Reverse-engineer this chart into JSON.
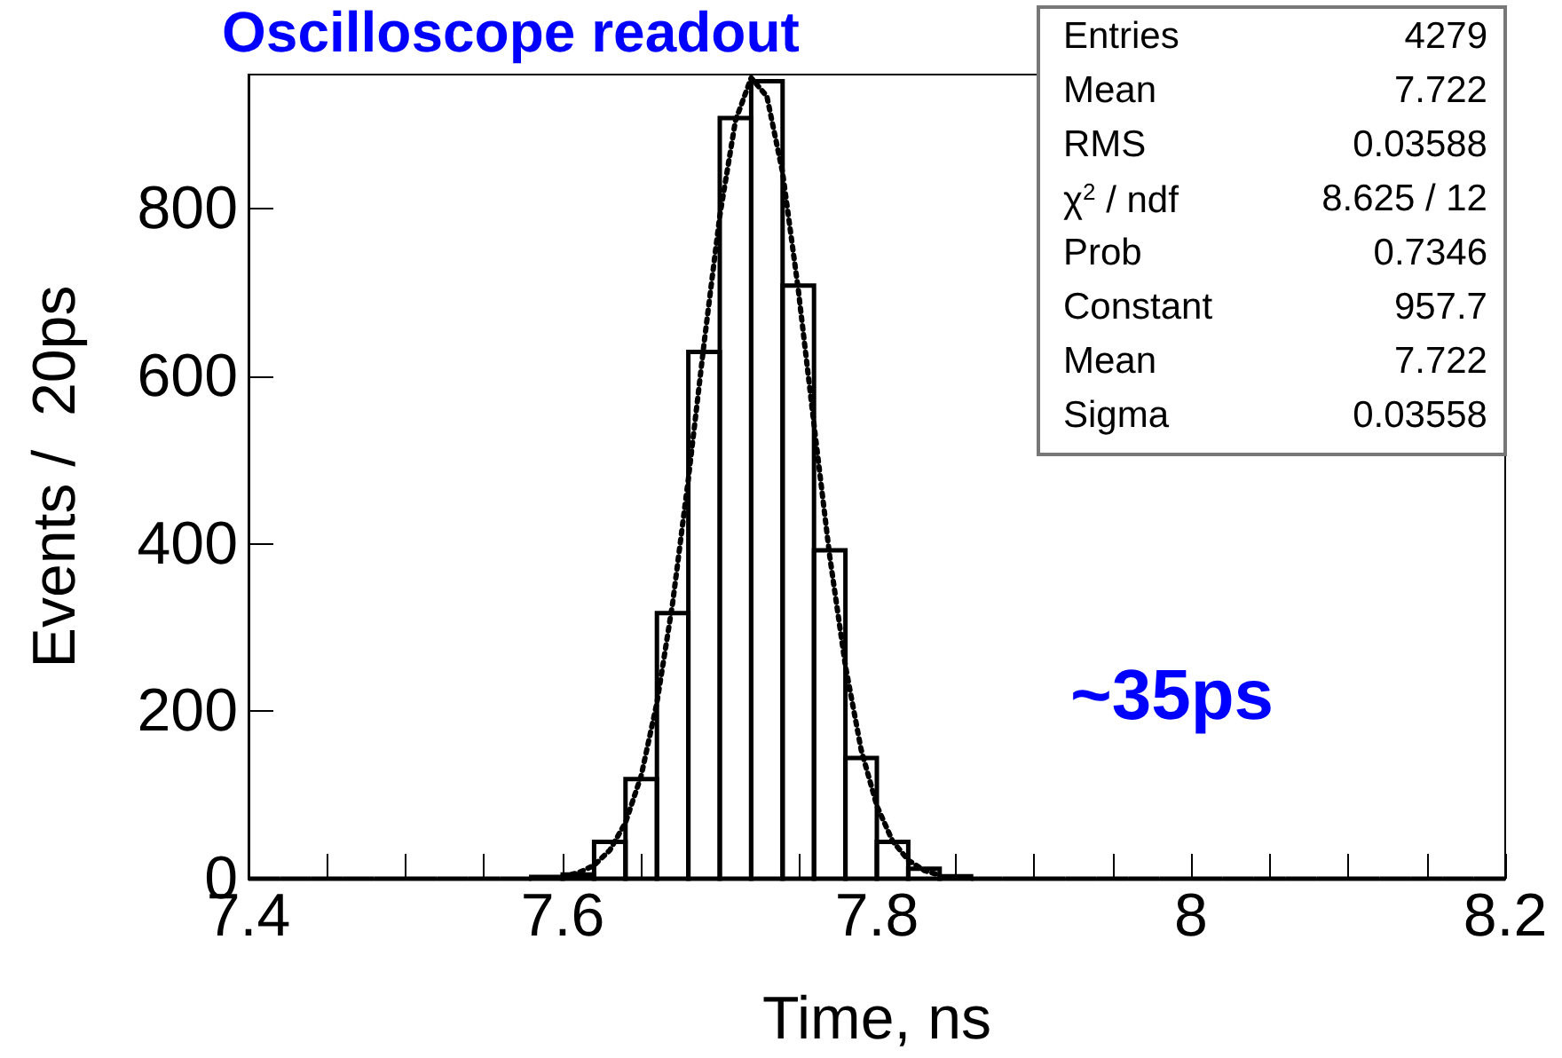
{
  "chart_data": {
    "type": "histogram",
    "title": "Oscilloscope readout",
    "xlabel": "Time, ns",
    "ylabel": "Events /  20ps",
    "xlim": [
      7.4,
      8.2
    ],
    "ylim": [
      0,
      960
    ],
    "xticks": [
      7.4,
      {
        "value": 7.45,
        "label": null
      },
      {
        "value": 7.5,
        "label": null
      },
      {
        "value": 7.55,
        "label": null
      },
      7.6,
      {
        "value": 7.65,
        "label": null
      },
      {
        "value": 7.7,
        "label": null
      },
      {
        "value": 7.75,
        "label": null
      },
      7.8,
      {
        "value": 7.85,
        "label": null
      },
      {
        "value": 7.9,
        "label": null
      },
      {
        "value": 7.95,
        "label": null
      },
      8,
      {
        "value": 8.05,
        "label": null
      },
      {
        "value": 8.1,
        "label": null
      },
      {
        "value": 8.15,
        "label": null
      },
      8.2
    ],
    "yticks": [
      0,
      200,
      400,
      600,
      800
    ],
    "grid": false,
    "series": [
      {
        "type": "histogram",
        "color": "#000000",
        "bins": [
          7.4,
          7.42,
          7.44,
          7.46,
          7.48,
          7.5,
          7.52,
          7.54,
          7.56,
          7.58,
          7.6,
          7.62,
          7.64,
          7.66,
          7.68,
          7.7,
          7.72,
          7.74,
          7.76,
          7.78,
          7.8,
          7.82,
          7.84,
          7.86,
          7.88,
          7.9,
          7.92,
          7.94,
          7.96,
          7.98,
          8,
          8.02,
          8.04,
          8.06,
          8.08,
          8.1,
          8.12,
          8.14,
          8.16,
          8.18,
          8.2
        ],
        "values": [
          0,
          0,
          0,
          0,
          0,
          0,
          0,
          0,
          0,
          2,
          5,
          44,
          119,
          317,
          629,
          908,
          952,
          708,
          392,
          144,
          44,
          12,
          3,
          0,
          0,
          0,
          0,
          0,
          0,
          0,
          0,
          0,
          0,
          0,
          0,
          0,
          0,
          0,
          0,
          0
        ]
      },
      {
        "type": "line",
        "color": "#000000",
        "line_style": "dotted",
        "marker": "none",
        "x": [
          7.6,
          7.61,
          7.62,
          7.63,
          7.64,
          7.65,
          7.66,
          7.67,
          7.68,
          7.69,
          7.7,
          7.71,
          7.72,
          7.73,
          7.74,
          7.75,
          7.76,
          7.77,
          7.78,
          7.79,
          7.8,
          7.81,
          7.82,
          7.83,
          7.84
        ],
        "values": [
          3,
          7,
          16,
          34,
          67,
          123,
          210,
          329,
          477,
          639,
          791,
          905,
          956,
          934,
          843,
          703,
          542,
          385,
          254,
          154,
          87,
          45,
          22,
          10,
          4
        ]
      }
    ],
    "annotations": [
      "Entries\t4279",
      "Mean\t7.722",
      "RMS\t0.03588",
      "χ$^{2}$ / ndf\t8.625 / 12",
      "Prob\t0.7346",
      "Constant\t957.7",
      "Mean\t7.722",
      "Sigma\t0.03558",
      "~35ps"
    ]
  }
}
